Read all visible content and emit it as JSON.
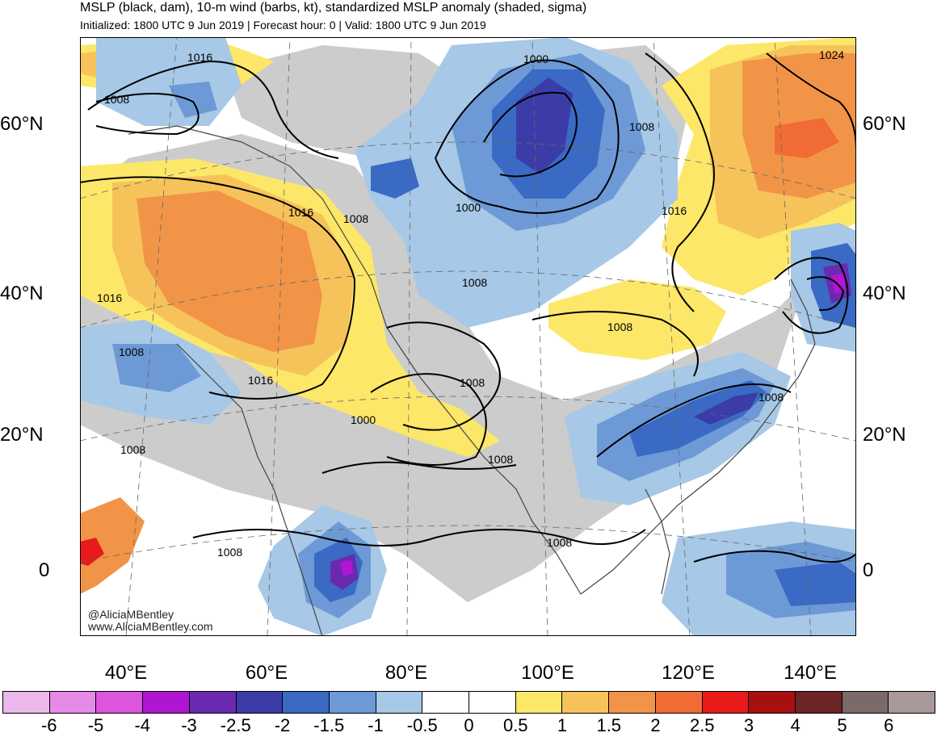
{
  "header": {
    "title": "MSLP (black, dam), 10-m wind (barbs, kt), standardized MSLP anomaly (shaded, sigma)",
    "subtitle": "Initialized: 1800 UTC 9 Jun 2019 | Forecast hour: 0 | Valid: 1800 UTC 9 Jun 2019"
  },
  "credit": {
    "line1": "@AliciaMBentley",
    "line2": "www.AliciaMBentley.com"
  },
  "lat_labels": [
    "60°N",
    "40°N",
    "20°N",
    "0"
  ],
  "lon_labels": [
    "40°E",
    "60°E",
    "80°E",
    "100°E",
    "120°E",
    "140°E"
  ],
  "contour_labels": [
    "1016",
    "1008",
    "1000",
    "1000",
    "1008",
    "1024",
    "1016",
    "1008",
    "1016",
    "1008",
    "1016",
    "1008",
    "1008",
    "1000",
    "1016",
    "1008",
    "1008",
    "1008",
    "1008",
    "1008",
    "1008"
  ],
  "colorbar": {
    "labels": [
      "-6",
      "-5",
      "-4",
      "-3",
      "-2.5",
      "-2",
      "-1.5",
      "-1",
      "-0.5",
      "0",
      "0.5",
      "1",
      "1.5",
      "2",
      "2.5",
      "3",
      "4",
      "5",
      "6"
    ],
    "colors": [
      "#ecb8ec",
      "#e68ae8",
      "#dc55dc",
      "#b015d2",
      "#6a2ab0",
      "#3b3ca8",
      "#3a6ac4",
      "#6d9ad6",
      "#a7c8e6",
      "#ffffff",
      "#ffffff",
      "#fde769",
      "#f6c35a",
      "#f29447",
      "#f06b35",
      "#e81a1a",
      "#a80f0f",
      "#6d2424",
      "#7a6a6a",
      "#a89a9a"
    ]
  },
  "colors": {
    "land_gray": "#cccccc",
    "contour": "#000000",
    "coast": "#444444",
    "gridline": "#666666"
  }
}
